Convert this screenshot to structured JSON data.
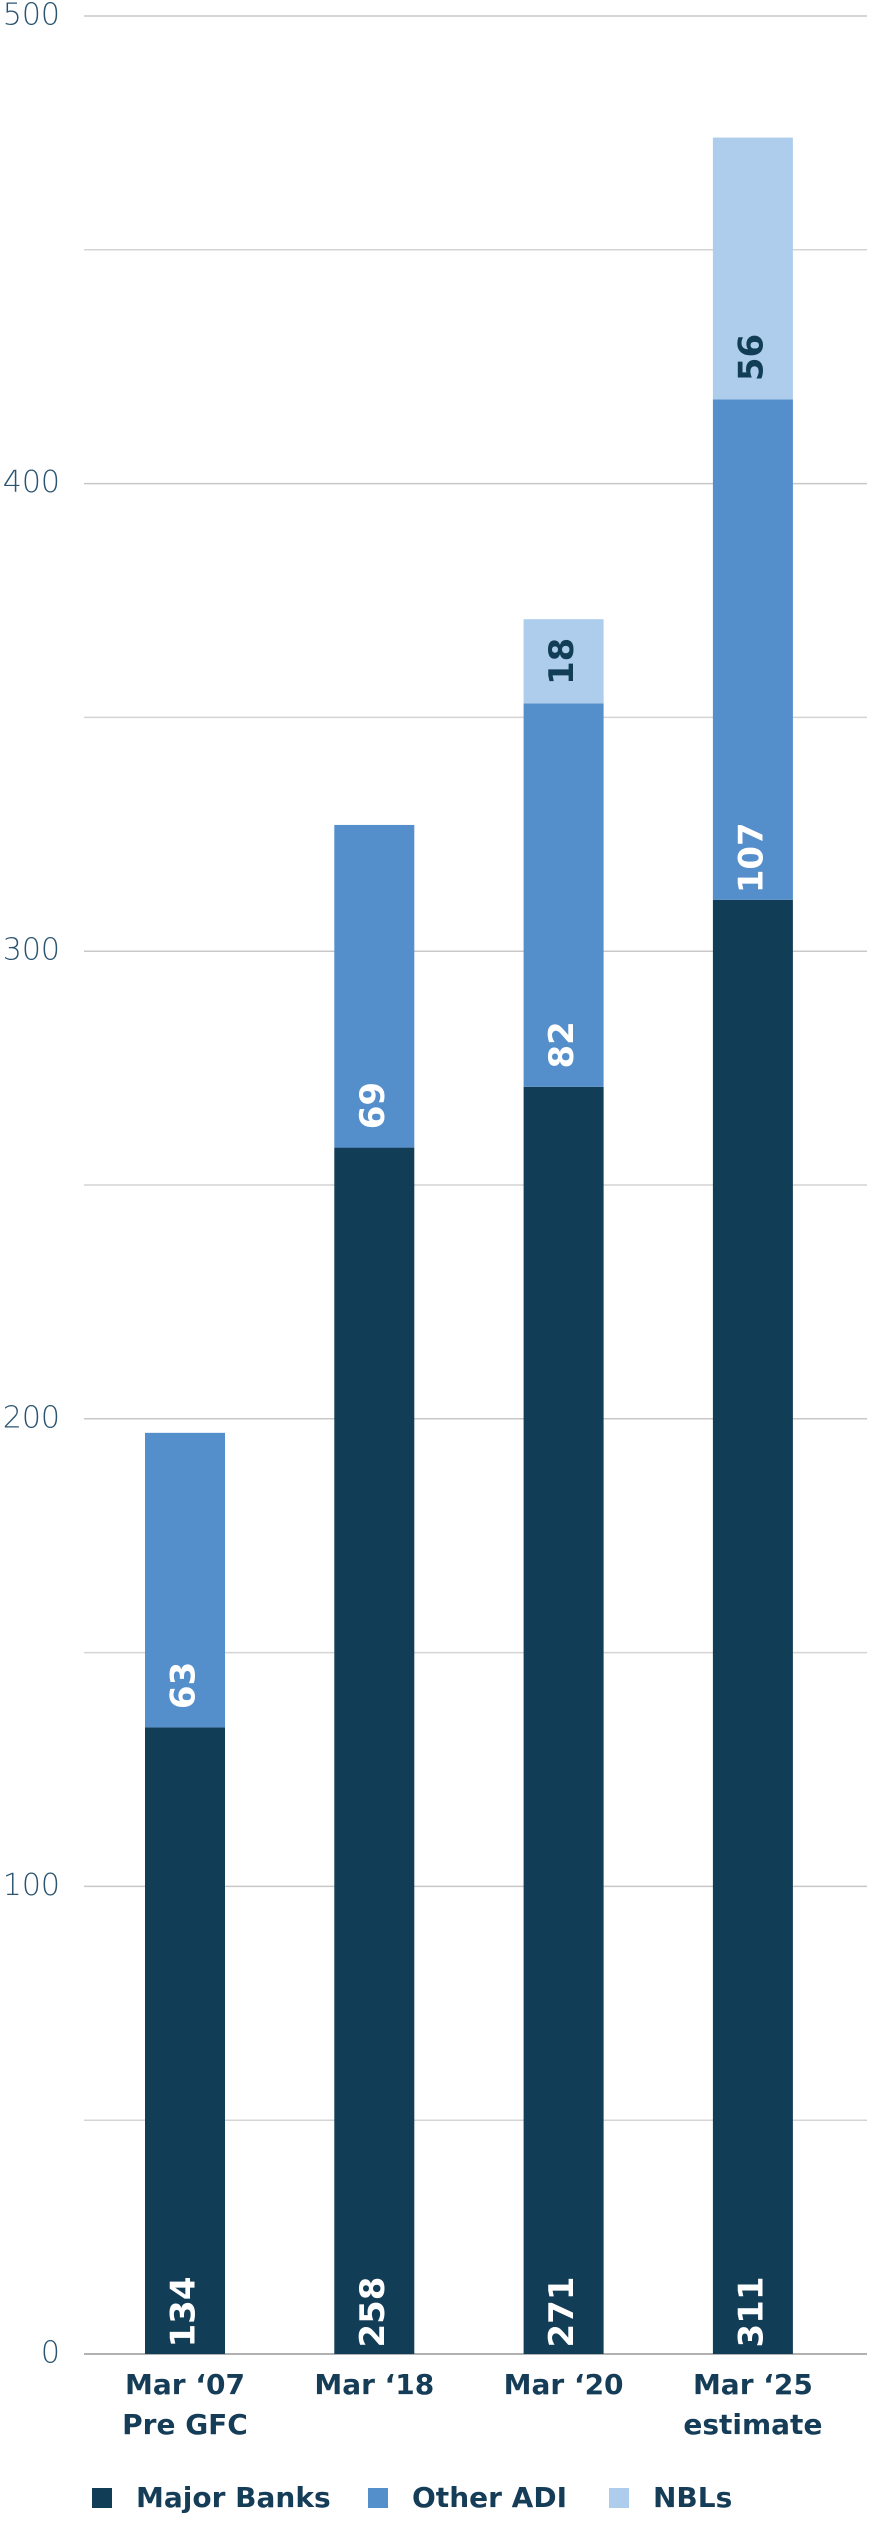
{
  "chart_data": {
    "type": "stacked_bar",
    "categories": [
      [
        "Mar ‘07",
        "Pre GFC"
      ],
      [
        "Mar ‘18"
      ],
      [
        "Mar ‘20"
      ],
      [
        "Mar ‘25",
        "estimate"
      ]
    ],
    "series": [
      {
        "name": "Major Banks",
        "color": "#123d57",
        "values": [
          134,
          258,
          271,
          311
        ]
      },
      {
        "name": "Other ADI",
        "color": "#548ecb",
        "values": [
          63,
          69,
          82,
          107
        ]
      },
      {
        "name": "NBLs",
        "color": "#aecdec",
        "values": [
          null,
          null,
          18,
          56
        ]
      }
    ],
    "ylim": [
      0,
      500
    ],
    "yticks": [
      0,
      100,
      200,
      300,
      400,
      500
    ],
    "minor_yticks": [
      50,
      150,
      250,
      350,
      450
    ],
    "grid": true,
    "legend": "bottom"
  }
}
